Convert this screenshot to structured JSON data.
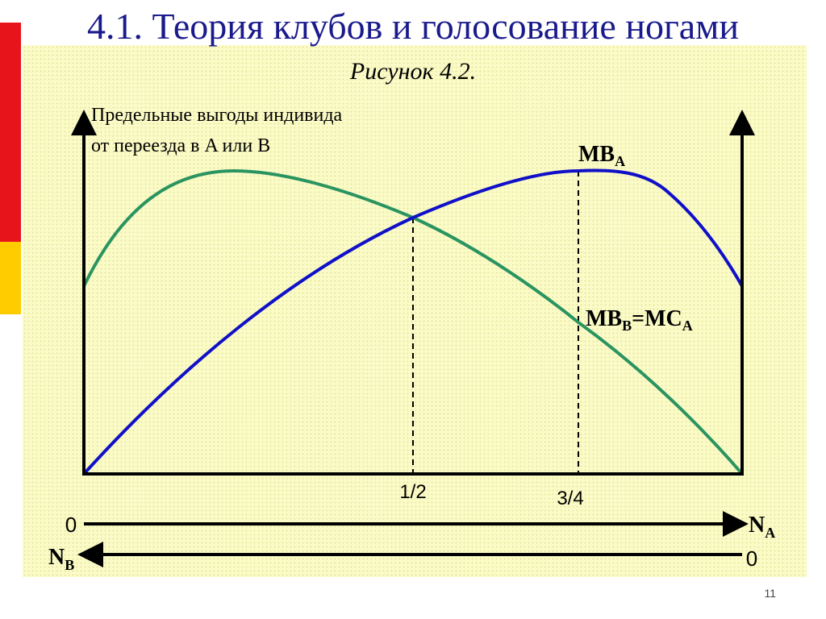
{
  "slide": {
    "title": "4.1. Теория клубов и голосование ногами",
    "figure_label": "Рисунок 4.2.",
    "page_number": "11"
  },
  "colors": {
    "title": "#1a1a8c",
    "panel_bg": "#fbfbc8",
    "mb_a_curve": "#1010c8",
    "mb_b_curve": "#2a9460",
    "axes": "#000000",
    "deco_red": "#e8141c",
    "deco_yellow": "#ffcc00"
  },
  "diagram": {
    "y_axis_label_line1": "Предельные выгоды индивида",
    "y_axis_label_line2": "от переезда в A или B",
    "curve_a_label": {
      "main": "MB",
      "sub": "A"
    },
    "curve_b_label": {
      "main1": "MB",
      "sub1": "B",
      "mid": "=MC",
      "sub2": "A"
    },
    "tick_half": "1/2",
    "tick_three_quarters": "3/4",
    "na_axis": {
      "zero": "0",
      "main": "N",
      "sub": "A"
    },
    "nb_axis": {
      "zero": "0",
      "main": "N",
      "sub": "B"
    }
  }
}
